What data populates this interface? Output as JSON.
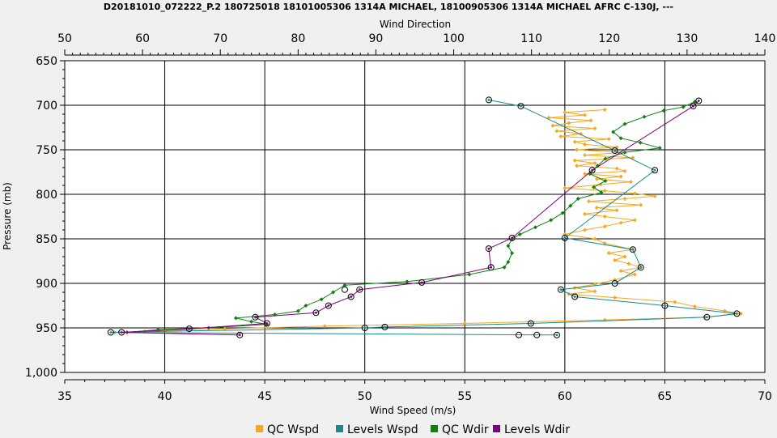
{
  "chart_data": {
    "type": "line",
    "title": "D20181010_072222_P.2 180725018 18101005306 1314A MICHAEL, 18100905306 1314A MICHAEL AFRC C-130J, ---",
    "xlabel_bottom": "Wind Speed (m/s)",
    "xlabel_top": "Wind Direction",
    "ylabel": "Pressure (mb)",
    "x_bottom_range": [
      35,
      70
    ],
    "x_bottom_ticks": [
      "35",
      "40",
      "45",
      "50",
      "55",
      "60",
      "65",
      "70"
    ],
    "x_top_range": [
      50,
      140
    ],
    "x_top_ticks": [
      "50",
      "60",
      "70",
      "80",
      "90",
      "100",
      "110",
      "120",
      "130",
      "140"
    ],
    "y_range": [
      650,
      1000
    ],
    "y_reversed": true,
    "y_ticks": [
      "650",
      "700",
      "750",
      "800",
      "850",
      "900",
      "950",
      "1,000"
    ],
    "grid": true,
    "legend_position": "bottom",
    "series": [
      {
        "name": "QC Wspd",
        "axis": "bottom",
        "color": "#f5a623",
        "marker": "diamond",
        "points": [
          [
            62.0,
            705
          ],
          [
            60.0,
            708
          ],
          [
            61.0,
            711
          ],
          [
            59.2,
            714
          ],
          [
            61.3,
            717
          ],
          [
            60.2,
            720
          ],
          [
            59.4,
            723
          ],
          [
            61.5,
            726
          ],
          [
            59.6,
            729
          ],
          [
            60.8,
            732
          ],
          [
            59.8,
            735
          ],
          [
            62.2,
            738
          ],
          [
            60.5,
            741
          ],
          [
            61.0,
            744
          ],
          [
            62.6,
            747
          ],
          [
            60.6,
            750
          ],
          [
            62.8,
            753
          ],
          [
            61.0,
            756
          ],
          [
            63.4,
            759
          ],
          [
            60.5,
            762
          ],
          [
            61.5,
            765
          ],
          [
            60.6,
            768
          ],
          [
            62.6,
            771
          ],
          [
            63.0,
            774
          ],
          [
            61.0,
            777
          ],
          [
            62.8,
            780
          ],
          [
            61.6,
            783
          ],
          [
            63.3,
            786
          ],
          [
            61.8,
            789
          ],
          [
            60.0,
            793
          ],
          [
            62.0,
            796
          ],
          [
            63.5,
            799
          ],
          [
            64.5,
            802
          ],
          [
            63.0,
            805
          ],
          [
            61.2,
            808
          ],
          [
            63.8,
            812
          ],
          [
            61.6,
            815
          ],
          [
            62.6,
            818
          ],
          [
            61.0,
            822
          ],
          [
            62.0,
            825
          ],
          [
            63.5,
            829
          ],
          [
            62.8,
            832
          ],
          [
            62.0,
            836
          ],
          [
            61.0,
            840
          ],
          [
            60.0,
            845
          ],
          [
            61.5,
            850
          ],
          [
            62.0,
            855
          ],
          [
            63.4,
            862
          ],
          [
            62.2,
            866
          ],
          [
            63.0,
            870
          ],
          [
            62.5,
            874
          ],
          [
            63.2,
            878
          ],
          [
            63.8,
            882
          ],
          [
            62.8,
            886
          ],
          [
            63.5,
            890
          ],
          [
            62.5,
            896
          ],
          [
            61.5,
            901
          ],
          [
            60.5,
            905
          ],
          [
            61.5,
            909
          ],
          [
            60.2,
            912
          ],
          [
            62.5,
            916
          ],
          [
            65.5,
            921
          ],
          [
            66.5,
            926
          ],
          [
            68.0,
            931
          ],
          [
            68.8,
            934
          ],
          [
            67.0,
            938
          ],
          [
            62.0,
            941
          ],
          [
            55.0,
            945
          ],
          [
            48.0,
            948
          ],
          [
            43.0,
            951
          ],
          [
            39.0,
            954
          ],
          [
            37.5,
            955
          ]
        ]
      },
      {
        "name": "Levels Wspd",
        "axis": "bottom",
        "color": "#1a8a8a",
        "marker": "circle",
        "points": [
          [
            56.2,
            694
          ],
          [
            57.8,
            701
          ],
          [
            62.5,
            751
          ],
          [
            64.5,
            773
          ],
          [
            60.0,
            849
          ],
          [
            63.4,
            862
          ],
          [
            63.8,
            882
          ],
          [
            62.5,
            900
          ],
          [
            59.8,
            907
          ],
          [
            60.5,
            915
          ],
          [
            65.0,
            925
          ],
          [
            68.6,
            934
          ],
          [
            67.1,
            938
          ],
          [
            58.3,
            945
          ],
          [
            51.0,
            949
          ],
          [
            50.0,
            950
          ],
          [
            37.3,
            955
          ],
          [
            59.6,
            958
          ]
        ]
      },
      {
        "name": "QC Wdir",
        "axis": "top",
        "color": "#108010",
        "marker": "diamond",
        "points": [
          [
            131.0,
            696
          ],
          [
            129.5,
            702
          ],
          [
            127.0,
            706
          ],
          [
            124.5,
            713
          ],
          [
            122.0,
            721
          ],
          [
            120.5,
            730
          ],
          [
            121.5,
            737
          ],
          [
            124.0,
            742
          ],
          [
            126.5,
            748
          ],
          [
            122.0,
            753
          ],
          [
            119.5,
            760
          ],
          [
            118.5,
            768
          ],
          [
            117.5,
            777
          ],
          [
            119.5,
            785
          ],
          [
            118.0,
            792
          ],
          [
            119.0,
            798
          ],
          [
            116.0,
            805
          ],
          [
            115.0,
            813
          ],
          [
            114.0,
            821
          ],
          [
            112.5,
            829
          ],
          [
            110.5,
            837
          ],
          [
            108.5,
            845
          ],
          [
            107.5,
            850
          ],
          [
            107.0,
            858
          ],
          [
            107.5,
            866
          ],
          [
            107.0,
            876
          ],
          [
            106.5,
            882
          ],
          [
            102.0,
            890
          ],
          [
            94.0,
            898
          ],
          [
            86.0,
            902
          ],
          [
            84.5,
            910
          ],
          [
            83.0,
            918
          ],
          [
            81.0,
            925
          ],
          [
            80.0,
            931
          ],
          [
            77.0,
            935
          ],
          [
            72.0,
            939
          ],
          [
            74.0,
            943
          ],
          [
            76.0,
            946
          ],
          [
            68.5,
            950
          ],
          [
            62.0,
            952
          ],
          [
            58.0,
            955
          ]
        ]
      },
      {
        "name": "Levels Wdir",
        "axis": "top",
        "color": "#800080",
        "marker": "circle",
        "points": [
          [
            131.5,
            695
          ],
          [
            130.8,
            701
          ],
          [
            117.8,
            773
          ],
          [
            107.5,
            849
          ],
          [
            104.5,
            861
          ],
          [
            104.8,
            882
          ],
          [
            95.9,
            899
          ],
          [
            87.9,
            907
          ],
          [
            86.8,
            915
          ],
          [
            83.9,
            925
          ],
          [
            82.3,
            933
          ],
          [
            74.5,
            938
          ],
          [
            76.0,
            945
          ],
          [
            66.0,
            951
          ],
          [
            57.3,
            955
          ],
          [
            72.5,
            958
          ]
        ]
      }
    ],
    "unlinked_points": [
      {
        "axis": "top",
        "x": 86.0,
        "y": 907
      },
      {
        "axis": "bottom",
        "x": 57.7,
        "y": 958
      },
      {
        "axis": "bottom",
        "x": 58.6,
        "y": 958
      }
    ]
  }
}
